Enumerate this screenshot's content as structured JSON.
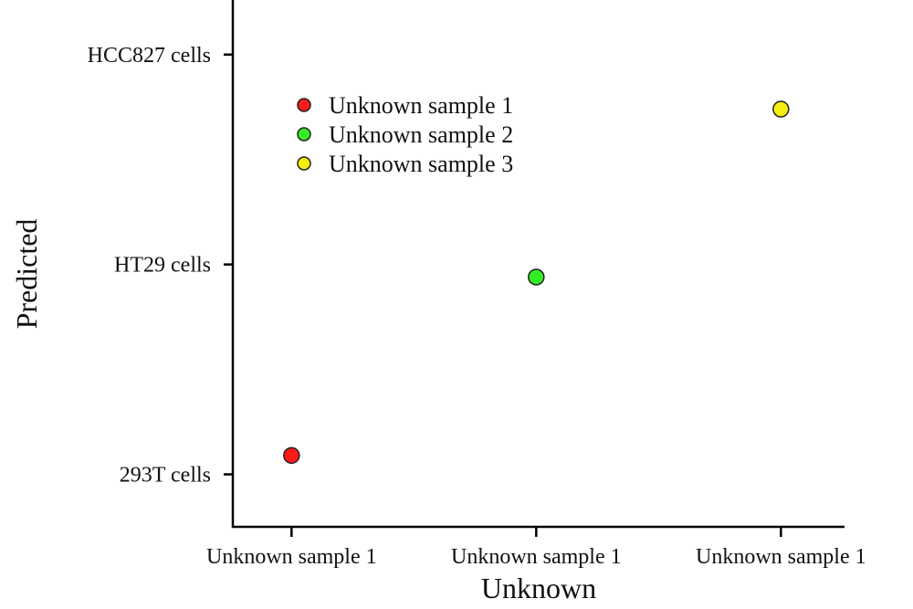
{
  "chart_data": {
    "type": "scatter",
    "title": "",
    "xlabel": "Unknown",
    "ylabel": "Predicted",
    "x_categories": [
      "Unknown sample 1",
      "Unknown sample 1",
      "Unknown sample 1"
    ],
    "y_categories": [
      "293T cells",
      "HT29 cells",
      "HCC827 cells"
    ],
    "xlim": [
      0.76,
      3.26
    ],
    "ylim": [
      0.75,
      3.26
    ],
    "grid": false,
    "legend": {
      "placement": "top-left",
      "entries": [
        "Unknown sample 1",
        "Unknown sample 2",
        "Unknown sample 3"
      ]
    },
    "series": [
      {
        "name": "Unknown sample 1",
        "color": "#ff1a1a",
        "x": 1,
        "y": 1.09,
        "y_category": "293T cells"
      },
      {
        "name": "Unknown sample 2",
        "color": "#33ee22",
        "x": 2,
        "y": 1.94,
        "y_category": "HT29 cells"
      },
      {
        "name": "Unknown sample 3",
        "color": "#f5ee10",
        "x": 3,
        "y": 2.74,
        "y_category": "HCC827 cells"
      }
    ]
  }
}
